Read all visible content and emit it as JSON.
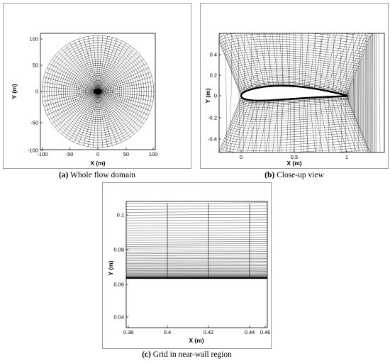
{
  "panels": [
    {
      "id": "a",
      "caption_letter": "(a)",
      "caption_text": " Whole flow domain",
      "xlabel": "X (m)",
      "ylabel": "Y (m)",
      "xticks": [
        "-100",
        "-50",
        "0",
        "50",
        "100"
      ],
      "yticks": [
        "100",
        "50",
        "0",
        "-50",
        "-100"
      ]
    },
    {
      "id": "b",
      "caption_letter": "(b)",
      "caption_text": " Close-up view",
      "xlabel": "X (m)",
      "ylabel": "Y (m)",
      "xticks": [
        "0",
        "0.5",
        "1"
      ],
      "yticks": [
        "0.4",
        "0.2",
        "0",
        "-0.2",
        "-0.4"
      ]
    },
    {
      "id": "c",
      "caption_letter": "(c)",
      "caption_text": " Grid in near-wall region",
      "xlabel": "X (m)",
      "ylabel": "Y (m)",
      "xticks": [
        "0.38",
        "0.4",
        "0.42",
        "0.44",
        "0.46"
      ],
      "yticks": [
        "0.1",
        "0.08",
        "0.06",
        "0.04"
      ]
    }
  ]
}
